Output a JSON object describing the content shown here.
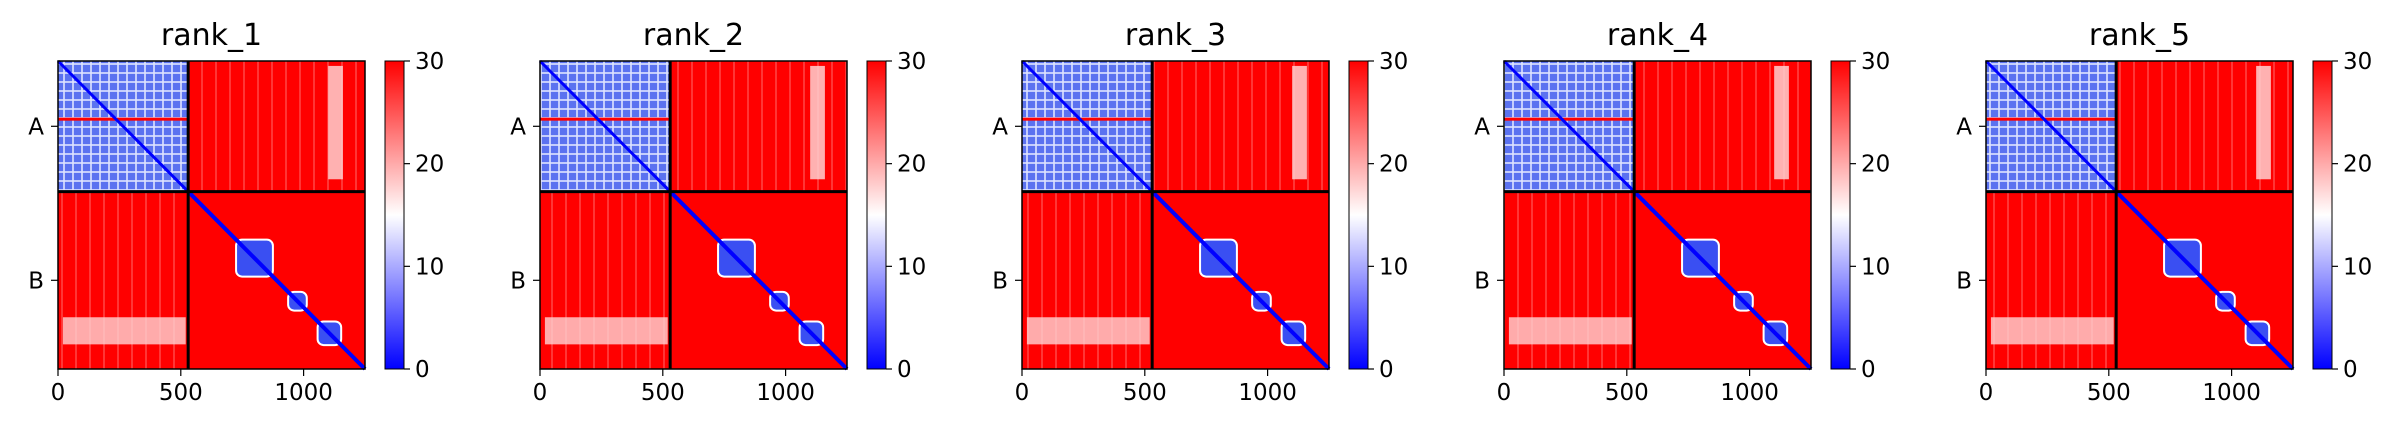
{
  "chart_data": {
    "type": "heatmap",
    "colormap": {
      "name": "bwr",
      "min": 0,
      "max": 30,
      "ticks": [
        0,
        10,
        20,
        30
      ],
      "colors": {
        "low": "#0000ff",
        "mid": "#ffffff",
        "high": "#ff0000"
      }
    },
    "xlim": [
      0,
      1250
    ],
    "x_ticks": [
      0,
      500,
      1000
    ],
    "chain_boundary": 530,
    "chains": [
      {
        "label": "A",
        "start": 0,
        "end": 530
      },
      {
        "label": "B",
        "start": 530,
        "end": 1250
      }
    ],
    "grid_lines_color": "#000000",
    "panels": [
      {
        "title": "rank_1"
      },
      {
        "title": "rank_2"
      },
      {
        "title": "rank_3"
      },
      {
        "title": "rank_4"
      },
      {
        "title": "rank_5"
      }
    ]
  }
}
